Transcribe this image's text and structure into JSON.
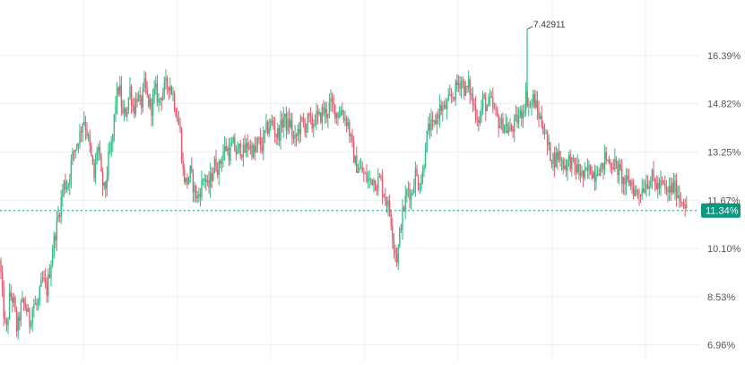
{
  "chart_data": {
    "type": "candlestick",
    "y_unit": "%",
    "ylim": [
      6.45,
      18.2
    ],
    "y_ticks": [
      "16.39%",
      "14.82%",
      "13.25%",
      "11.67%",
      "10.10%",
      "8.53%",
      "6.96%"
    ],
    "y_tick_values": [
      16.39,
      14.82,
      13.25,
      11.67,
      10.1,
      8.53,
      6.96
    ],
    "last_value_label": "11.34%",
    "last_value": 11.34,
    "max_annotation_label": "7.42911",
    "grid": true,
    "colors": {
      "up": "#2ebd85",
      "down": "#e05c6f",
      "last_value_bg": "#089981",
      "grid": "#efefef",
      "axis_text": "#555555",
      "dashed_line": "#089981"
    },
    "series": [
      {
        "path": [
          [
            0,
            9.7
          ],
          [
            3,
            8.3
          ],
          [
            7,
            7.3
          ],
          [
            11,
            8.6
          ],
          [
            15,
            8.4
          ],
          [
            19,
            7.4
          ],
          [
            24,
            8.3
          ],
          [
            29,
            8.2
          ],
          [
            33,
            7.7
          ],
          [
            37,
            8.3
          ],
          [
            42,
            8.2
          ],
          [
            47,
            9.1
          ],
          [
            52,
            8.7
          ],
          [
            57,
            9.7
          ],
          [
            61,
            10.5
          ],
          [
            66,
            11.3
          ],
          [
            71,
            12.2
          ],
          [
            76,
            12.2
          ],
          [
            80,
            13.0
          ],
          [
            85,
            13.5
          ],
          [
            89,
            13.8
          ],
          [
            93,
            14.4
          ],
          [
            97,
            13.9
          ],
          [
            101,
            13.2
          ],
          [
            105,
            12.4
          ],
          [
            109,
            13.6
          ],
          [
            113,
            12.4
          ],
          [
            117,
            11.9
          ],
          [
            121,
            13.0
          ],
          [
            125,
            13.5
          ],
          [
            129,
            14.9
          ],
          [
            133,
            15.4
          ],
          [
            137,
            14.4
          ],
          [
            141,
            14.6
          ],
          [
            145,
            15.3
          ],
          [
            149,
            14.6
          ],
          [
            153,
            15.1
          ],
          [
            157,
            14.7
          ],
          [
            161,
            15.4
          ],
          [
            165,
            14.9
          ],
          [
            169,
            14.7
          ],
          [
            173,
            15.3
          ],
          [
            177,
            14.9
          ],
          [
            181,
            15.2
          ],
          [
            185,
            15.4
          ],
          [
            189,
            15.5
          ],
          [
            193,
            15.1
          ],
          [
            197,
            14.5
          ],
          [
            201,
            13.9
          ],
          [
            204,
            12.6
          ],
          [
            208,
            12.2
          ],
          [
            212,
            12.6
          ],
          [
            216,
            12.1
          ],
          [
            220,
            11.7
          ],
          [
            224,
            12.1
          ],
          [
            228,
            12.5
          ],
          [
            232,
            12.0
          ],
          [
            236,
            12.5
          ],
          [
            240,
            12.9
          ],
          [
            244,
            12.7
          ],
          [
            248,
            13.2
          ],
          [
            252,
            13.4
          ],
          [
            256,
            13.2
          ],
          [
            260,
            13.5
          ],
          [
            264,
            13.2
          ],
          [
            268,
            13.4
          ],
          [
            272,
            13.2
          ],
          [
            276,
            13.5
          ],
          [
            280,
            13.4
          ],
          [
            284,
            13.2
          ],
          [
            288,
            13.6
          ],
          [
            292,
            13.4
          ],
          [
            296,
            13.9
          ],
          [
            300,
            14.1
          ],
          [
            304,
            14.2
          ],
          [
            308,
            13.8
          ],
          [
            312,
            13.9
          ],
          [
            316,
            14.4
          ],
          [
            320,
            14.1
          ],
          [
            324,
            14.2
          ],
          [
            328,
            13.5
          ],
          [
            332,
            13.9
          ],
          [
            336,
            14.2
          ],
          [
            340,
            14.1
          ],
          [
            344,
            14.3
          ],
          [
            348,
            14.1
          ],
          [
            352,
            14.4
          ],
          [
            356,
            14.3
          ],
          [
            360,
            14.6
          ],
          [
            364,
            14.5
          ],
          [
            368,
            14.8
          ],
          [
            372,
            14.7
          ],
          [
            376,
            14.5
          ],
          [
            380,
            14.6
          ],
          [
            384,
            14.4
          ],
          [
            388,
            14.2
          ],
          [
            392,
            13.5
          ],
          [
            396,
            12.9
          ],
          [
            400,
            12.7
          ],
          [
            404,
            12.6
          ],
          [
            408,
            12.4
          ],
          [
            412,
            12.3
          ],
          [
            416,
            12.4
          ],
          [
            420,
            12.2
          ],
          [
            424,
            12.4
          ],
          [
            428,
            11.9
          ],
          [
            432,
            11.6
          ],
          [
            436,
            11.1
          ],
          [
            440,
            10.1
          ],
          [
            443,
            9.75
          ],
          [
            447,
            10.9
          ],
          [
            451,
            11.5
          ],
          [
            455,
            12.1
          ],
          [
            459,
            11.8
          ],
          [
            463,
            12.6
          ],
          [
            467,
            12.2
          ],
          [
            471,
            12.4
          ],
          [
            475,
            13.6
          ],
          [
            479,
            14.1
          ],
          [
            483,
            14.0
          ],
          [
            487,
            14.4
          ],
          [
            491,
            14.7
          ],
          [
            495,
            14.6
          ],
          [
            499,
            14.8
          ],
          [
            503,
            15.0
          ],
          [
            507,
            15.2
          ],
          [
            511,
            15.5
          ],
          [
            515,
            15.6
          ],
          [
            519,
            15.2
          ],
          [
            523,
            15.4
          ],
          [
            527,
            14.9
          ],
          [
            531,
            14.5
          ],
          [
            535,
            14.3
          ],
          [
            539,
            15.0
          ],
          [
            543,
            14.7
          ],
          [
            547,
            14.9
          ],
          [
            551,
            14.6
          ],
          [
            555,
            14.3
          ],
          [
            559,
            14.1
          ],
          [
            563,
            14.2
          ],
          [
            567,
            13.9
          ],
          [
            571,
            14.0
          ],
          [
            575,
            14.2
          ],
          [
            579,
            14.4
          ],
          [
            583,
            14.6
          ],
          [
            587,
            15.1
          ],
          [
            591,
            14.7
          ],
          [
            595,
            15.0
          ],
          [
            599,
            14.6
          ],
          [
            603,
            14.3
          ],
          [
            607,
            14.0
          ],
          [
            611,
            13.4
          ],
          [
            615,
            13.1
          ],
          [
            619,
            13.0
          ],
          [
            623,
            13.2
          ],
          [
            627,
            12.9
          ],
          [
            631,
            12.8
          ],
          [
            635,
            13.0
          ],
          [
            639,
            12.8
          ],
          [
            643,
            12.7
          ],
          [
            647,
            12.6
          ],
          [
            651,
            12.4
          ],
          [
            655,
            12.6
          ],
          [
            659,
            12.7
          ],
          [
            663,
            12.5
          ],
          [
            667,
            12.8
          ],
          [
            671,
            12.6
          ],
          [
            675,
            13.1
          ],
          [
            679,
            12.9
          ],
          [
            683,
            12.9
          ],
          [
            687,
            12.8
          ],
          [
            691,
            12.6
          ],
          [
            695,
            12.3
          ],
          [
            699,
            12.2
          ],
          [
            703,
            12.3
          ],
          [
            707,
            12.0
          ],
          [
            711,
            11.9
          ],
          [
            715,
            12.0
          ],
          [
            719,
            12.2
          ],
          [
            723,
            12.3
          ],
          [
            727,
            12.4
          ],
          [
            731,
            12.2
          ],
          [
            735,
            12.1
          ],
          [
            739,
            12.2
          ],
          [
            743,
            11.9
          ],
          [
            747,
            12.0
          ],
          [
            751,
            12.1
          ],
          [
            755,
            12.0
          ],
          [
            759,
            11.7
          ],
          [
            763,
            11.7
          ],
          [
            766,
            11.34
          ]
        ],
        "spikes": [
          [
            588,
            17.25
          ]
        ]
      }
    ]
  }
}
